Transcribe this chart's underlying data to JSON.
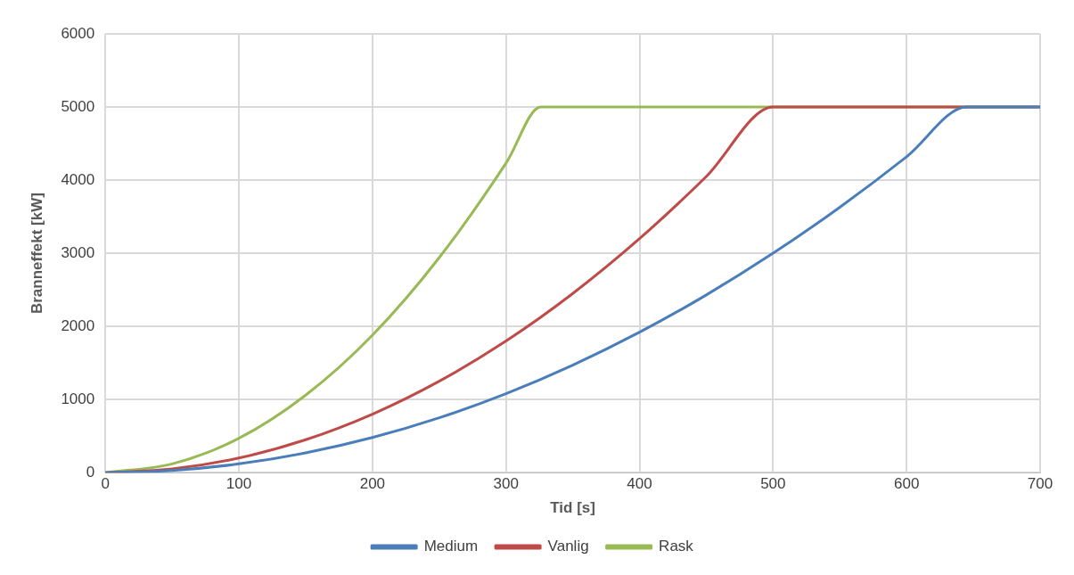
{
  "chart_data": {
    "type": "line",
    "xlabel": "Tid [s]",
    "ylabel": "Branneffekt [kW]",
    "xlim": [
      0,
      700
    ],
    "xticks": [
      0,
      100,
      200,
      300,
      400,
      500,
      600,
      700
    ],
    "ylim": [
      0,
      6000
    ],
    "yticks": [
      0,
      1000,
      2000,
      3000,
      4000,
      5000,
      6000
    ],
    "grid": true,
    "legend": "bottom",
    "marker": "none",
    "line_style": "solid",
    "series": [
      {
        "name": "Medium",
        "color": "#4a7ebb",
        "x": [
          0,
          50,
          100,
          150,
          200,
          250,
          300,
          350,
          400,
          450,
          500,
          550,
          600,
          645,
          700
        ],
        "values": [
          0,
          30,
          120,
          270,
          480,
          750,
          1080,
          1470,
          1920,
          2430,
          3000,
          3630,
          4320,
          5000,
          5000
        ]
      },
      {
        "name": "Vanlig",
        "color": "#be4b48",
        "x": [
          0,
          50,
          100,
          150,
          200,
          250,
          300,
          350,
          400,
          450,
          500,
          700
        ],
        "values": [
          0,
          50,
          200,
          450,
          800,
          1250,
          1800,
          2450,
          3200,
          4050,
          5000,
          5000
        ]
      },
      {
        "name": "Rask",
        "color": "#98b954",
        "x": [
          0,
          50,
          100,
          150,
          200,
          250,
          300,
          326,
          700
        ],
        "values": [
          0,
          120,
          470,
          1060,
          1880,
          2940,
          4230,
          5000,
          5000
        ]
      }
    ]
  }
}
